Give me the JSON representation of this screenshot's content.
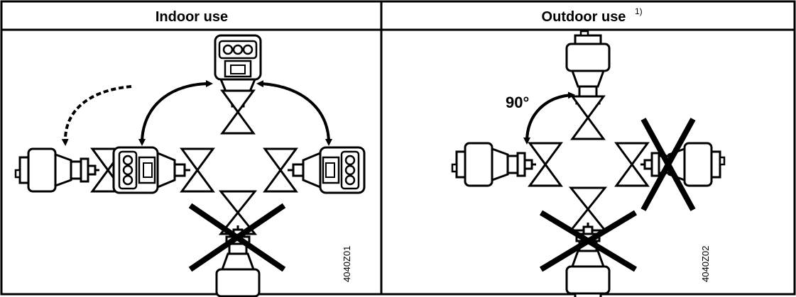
{
  "panels": [
    {
      "title": "Indoor use",
      "footnote": "",
      "code": "4040Z01"
    },
    {
      "title": "Outdoor use",
      "footnote": "1)",
      "code": "4040Z02",
      "angle_label": "90°"
    }
  ]
}
